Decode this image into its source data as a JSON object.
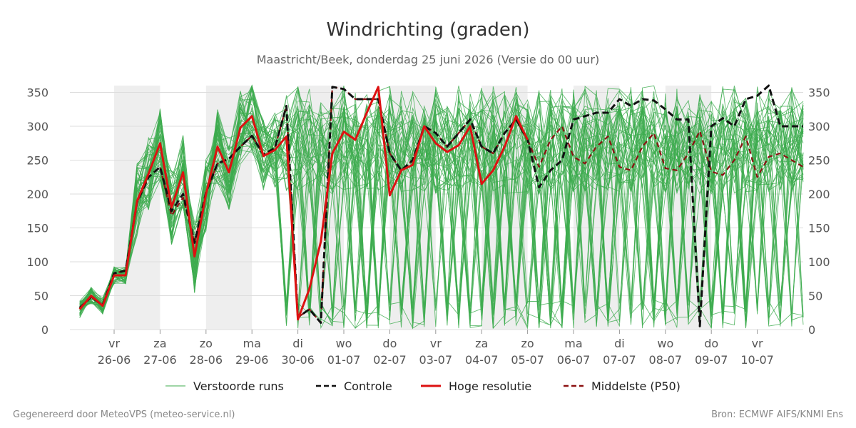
{
  "chart_data": {
    "type": "line",
    "title": "Windrichting (graden)",
    "subtitle": "Maastricht/Beek, donderdag 25 juni 2026 (Versie do 00 uur)",
    "ylim": [
      0,
      360
    ],
    "y_ticks": [
      0,
      50,
      100,
      150,
      200,
      250,
      300,
      350
    ],
    "x_range_days": [
      0,
      15
    ],
    "x_ticks": [
      {
        "day": "vr",
        "date": "26-06"
      },
      {
        "day": "za",
        "date": "27-06"
      },
      {
        "day": "zo",
        "date": "28-06"
      },
      {
        "day": "ma",
        "date": "29-06"
      },
      {
        "day": "di",
        "date": "30-06"
      },
      {
        "day": "wo",
        "date": "01-07"
      },
      {
        "day": "do",
        "date": "02-07"
      },
      {
        "day": "vr",
        "date": "03-07"
      },
      {
        "day": "za",
        "date": "04-07"
      },
      {
        "day": "zo",
        "date": "05-07"
      },
      {
        "day": "ma",
        "date": "06-07"
      },
      {
        "day": "di",
        "date": "07-07"
      },
      {
        "day": "wo",
        "date": "08-07"
      },
      {
        "day": "do",
        "date": "09-07"
      },
      {
        "day": "vr",
        "date": "10-07"
      }
    ],
    "shaded_days": [
      "26-06",
      "28-06",
      "30-06",
      "02-07",
      "04-07",
      "06-07",
      "08-07"
    ],
    "legend_position": "bottom",
    "series": [
      {
        "name": "Hoge resolutie",
        "color": "#dd1111",
        "x": [
          -0.75,
          -0.5,
          -0.25,
          0,
          0.25,
          0.5,
          0.75,
          1,
          1.25,
          1.5,
          1.75,
          2,
          2.25,
          2.5,
          2.75,
          3,
          3.25,
          3.5,
          3.75,
          4,
          4.25,
          4.5,
          4.75,
          5,
          5.25,
          5.5,
          5.75,
          6,
          6.25,
          6.5,
          6.75,
          7,
          7.25,
          7.5,
          7.75,
          8,
          8.25,
          8.5,
          8.75,
          9
        ],
        "values": [
          30,
          50,
          35,
          80,
          80,
          190,
          230,
          275,
          180,
          232,
          108,
          200,
          270,
          232,
          298,
          315,
          256,
          265,
          285,
          15,
          60,
          130,
          260,
          292,
          280,
          320,
          358,
          198,
          235,
          243,
          300,
          275,
          262,
          272,
          300,
          215,
          235,
          270,
          315,
          280
        ]
      },
      {
        "name": "Controle",
        "color": "#111111",
        "x": [
          -0.75,
          -0.5,
          -0.25,
          0,
          0.25,
          0.5,
          0.75,
          1,
          1.25,
          1.5,
          1.75,
          2,
          2.25,
          2.5,
          2.75,
          3,
          3.25,
          3.5,
          3.75,
          4,
          4.25,
          4.5,
          4.75,
          5,
          5.25,
          5.5,
          5.75,
          6,
          6.25,
          6.5,
          6.75,
          7,
          7.25,
          7.5,
          7.75,
          8,
          8.25,
          8.5,
          8.75,
          9,
          9.25,
          9.5,
          9.75,
          10,
          10.25,
          10.5,
          10.75,
          11,
          11.25,
          11.5,
          11.75,
          12,
          12.25,
          12.5,
          12.75,
          13,
          13.25,
          13.5,
          13.75,
          14,
          14.25,
          14.5,
          14.75,
          15
        ],
        "values": [
          32,
          48,
          36,
          83,
          87,
          188,
          225,
          240,
          175,
          200,
          128,
          202,
          245,
          252,
          270,
          286,
          258,
          268,
          330,
          18,
          30,
          10,
          358,
          355,
          340,
          340,
          340,
          260,
          235,
          250,
          300,
          290,
          270,
          290,
          310,
          270,
          260,
          290,
          310,
          280,
          210,
          235,
          250,
          310,
          315,
          320,
          320,
          340,
          330,
          340,
          338,
          325,
          310,
          310,
          5,
          300,
          312,
          300,
          340,
          345,
          360,
          300,
          300,
          300
        ]
      },
      {
        "name": "Middelste (P50)",
        "color": "#8b1111",
        "x": [
          -0.75,
          -0.5,
          -0.25,
          0,
          0.25,
          0.5,
          0.75,
          1,
          1.25,
          1.5,
          1.75,
          2,
          2.25,
          2.5,
          2.75,
          3,
          3.25,
          3.5,
          3.75,
          4,
          4.25,
          4.5,
          4.75,
          5,
          5.25,
          5.5,
          5.75,
          6,
          6.25,
          6.5,
          6.75,
          7,
          7.25,
          7.5,
          7.75,
          8,
          8.25,
          8.5,
          8.75,
          9,
          9.25,
          9.5,
          9.75,
          10,
          10.25,
          10.5,
          10.75,
          11,
          11.25,
          11.5,
          11.75,
          12,
          12.25,
          12.5,
          12.75,
          13,
          13.25,
          13.5,
          13.75,
          14,
          14.25,
          14.5,
          14.75,
          15
        ],
        "values": [
          32,
          48,
          36,
          83,
          87,
          188,
          225,
          240,
          168,
          195,
          128,
          202,
          245,
          252,
          270,
          286,
          258,
          268,
          330,
          18,
          30,
          10,
          358,
          355,
          340,
          340,
          340,
          260,
          235,
          250,
          300,
          290,
          270,
          290,
          310,
          270,
          260,
          290,
          310,
          280,
          240,
          280,
          300,
          255,
          245,
          270,
          285,
          240,
          235,
          270,
          290,
          238,
          235,
          260,
          293,
          233,
          228,
          250,
          285,
          225,
          255,
          260,
          250,
          240
        ]
      }
    ],
    "legend": [
      {
        "label": "Verstoorde runs",
        "style": "thin-line",
        "color": "#3cab4e"
      },
      {
        "label": "Controle",
        "style": "dashed",
        "color": "#111111"
      },
      {
        "label": "Hoge resolutie",
        "style": "thick",
        "color": "#dd1111"
      },
      {
        "label": "Middelste (P50)",
        "style": "dashed",
        "color": "#8b1111"
      }
    ],
    "ensemble_color": "#3cab4e",
    "ensemble_member_count": 50
  },
  "footer": {
    "left": "Gegenereerd door MeteoVPS (meteo-service.nl)",
    "right": "Bron: ECMWF AIFS/KNMI Ens"
  }
}
